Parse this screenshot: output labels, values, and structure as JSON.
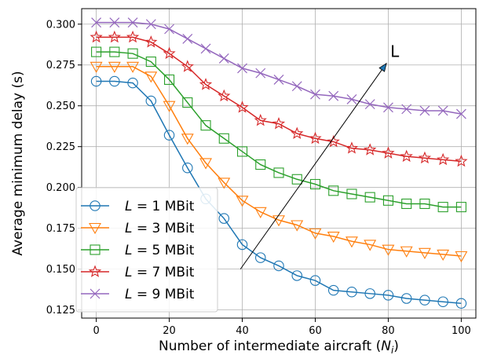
{
  "chart_data": {
    "type": "line",
    "title": "",
    "xlabel": "Number of intermediate aircraft (",
    "xlabel_var": "N",
    "xlabel_sub": "i",
    "xlabel_close": ")",
    "ylabel": "Average minimum delay (s)",
    "xlim": [
      -4,
      104
    ],
    "ylim": [
      0.12,
      0.3095
    ],
    "x_ticks": [
      0,
      20,
      40,
      60,
      80,
      100
    ],
    "x_tick_labels": [
      "0",
      "20",
      "40",
      "60",
      "80",
      "100"
    ],
    "y_ticks": [
      0.125,
      0.15,
      0.175,
      0.2,
      0.225,
      0.25,
      0.275,
      0.3
    ],
    "y_tick_labels": [
      "0.125",
      "0.150",
      "0.175",
      "0.200",
      "0.225",
      "0.250",
      "0.275",
      "0.300"
    ],
    "grid": true,
    "legend_position": "bottom-left",
    "x": [
      0,
      5,
      10,
      15,
      20,
      25,
      30,
      35,
      40,
      45,
      50,
      55,
      60,
      65,
      70,
      75,
      80,
      85,
      90,
      95,
      100
    ],
    "series": [
      {
        "name": "= 1 MBit",
        "var": "L",
        "color": "#1f77b4",
        "marker": "circle",
        "values": [
          0.265,
          0.265,
          0.264,
          0.253,
          0.232,
          0.212,
          0.193,
          0.181,
          0.165,
          0.157,
          0.152,
          0.146,
          0.143,
          0.137,
          0.136,
          0.135,
          0.134,
          0.132,
          0.131,
          0.13,
          0.129
        ]
      },
      {
        "name": "= 3 MBit",
        "var": "L",
        "color": "#ff7f0e",
        "marker": "triangle-down",
        "values": [
          0.274,
          0.274,
          0.274,
          0.268,
          0.25,
          0.23,
          0.215,
          0.203,
          0.192,
          0.185,
          0.18,
          0.177,
          0.172,
          0.17,
          0.167,
          0.165,
          0.162,
          0.161,
          0.16,
          0.159,
          0.158
        ]
      },
      {
        "name": "= 5 MBit",
        "var": "L",
        "color": "#2ca02c",
        "marker": "square",
        "values": [
          0.283,
          0.283,
          0.282,
          0.277,
          0.266,
          0.252,
          0.238,
          0.23,
          0.222,
          0.214,
          0.209,
          0.205,
          0.202,
          0.198,
          0.196,
          0.194,
          0.192,
          0.19,
          0.19,
          0.188,
          0.188
        ]
      },
      {
        "name": "= 7 MBit",
        "var": "L",
        "color": "#d62728",
        "marker": "star",
        "values": [
          0.292,
          0.292,
          0.292,
          0.289,
          0.282,
          0.274,
          0.263,
          0.256,
          0.249,
          0.241,
          0.239,
          0.233,
          0.23,
          0.228,
          0.224,
          0.223,
          0.221,
          0.219,
          0.218,
          0.217,
          0.216
        ]
      },
      {
        "name": "= 9 MBit",
        "var": "L",
        "color": "#9467bd",
        "marker": "x",
        "values": [
          0.301,
          0.301,
          0.301,
          0.3,
          0.297,
          0.291,
          0.285,
          0.279,
          0.273,
          0.27,
          0.266,
          0.262,
          0.257,
          0.256,
          0.254,
          0.251,
          0.249,
          0.248,
          0.247,
          0.247,
          0.245
        ]
      }
    ],
    "annotation": {
      "text": "L",
      "arrow_from": [
        39.5,
        0.15
      ],
      "arrow_to": [
        79.5,
        0.276
      ]
    }
  }
}
